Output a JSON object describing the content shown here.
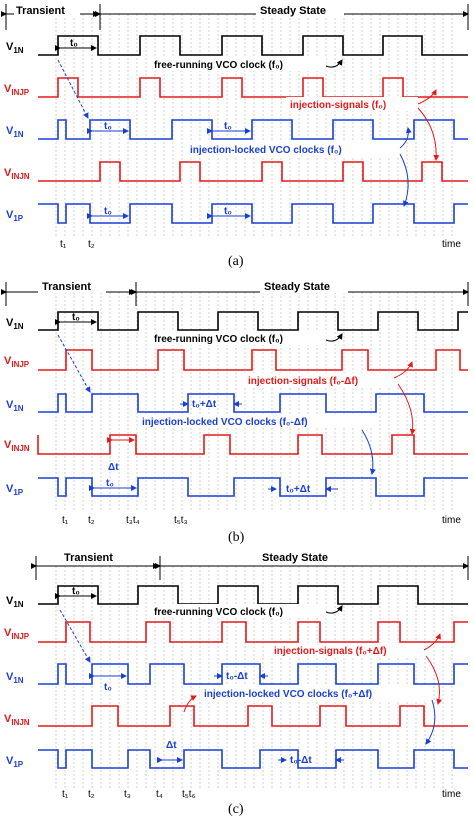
{
  "panels": [
    {
      "caption": "(a)",
      "header": {
        "left": "Transient",
        "right": "Steady State"
      },
      "signals": [
        {
          "label": "V",
          "sub": "1N",
          "color": "#000000"
        },
        {
          "label": "V",
          "sub": "INJP",
          "color": "#e41a1a"
        },
        {
          "label": "V",
          "sub": "1N",
          "color": "#1a3fd6"
        },
        {
          "label": "V",
          "sub": "INJN",
          "color": "#e41a1a"
        },
        {
          "label": "V",
          "sub": "1P",
          "color": "#1a3fd6"
        }
      ],
      "annotations": {
        "free_running": "free-running VCO clock (f₀)",
        "injection_signals": "injection-signals (f₀)",
        "locked": "injection-locked VCO clocks (f₀)",
        "period": "t₀"
      },
      "x_ticks": [
        "t₁",
        "t₂"
      ],
      "x_axis_label": "time"
    },
    {
      "caption": "(b)",
      "header": {
        "left": "Transient",
        "right": "Steady State"
      },
      "signals": [
        {
          "label": "V",
          "sub": "1N",
          "color": "#000000"
        },
        {
          "label": "V",
          "sub": "INJP",
          "color": "#e41a1a"
        },
        {
          "label": "V",
          "sub": "1N",
          "color": "#1a3fd6"
        },
        {
          "label": "V",
          "sub": "INJN",
          "color": "#e41a1a"
        },
        {
          "label": "V",
          "sub": "1P",
          "color": "#1a3fd6"
        }
      ],
      "annotations": {
        "free_running": "free-running VCO clock (f₀)",
        "injection_signals": "injection-signals (f₀-Δf)",
        "locked": "injection-locked VCO clocks (f₀-Δf)",
        "period": "t₀",
        "period_shift": "t₀+Δt",
        "delta": "Δt"
      },
      "x_ticks": [
        "t₁",
        "t₂",
        "t₃t₄",
        "t₅t₃"
      ],
      "x_axis_label": "time"
    },
    {
      "caption": "(c)",
      "header": {
        "left": "Transient",
        "right": "Steady State"
      },
      "signals": [
        {
          "label": "V",
          "sub": "1N",
          "color": "#000000"
        },
        {
          "label": "V",
          "sub": "INJP",
          "color": "#e41a1a"
        },
        {
          "label": "V",
          "sub": "1N",
          "color": "#1a3fd6"
        },
        {
          "label": "V",
          "sub": "INJN",
          "color": "#e41a1a"
        },
        {
          "label": "V",
          "sub": "1P",
          "color": "#1a3fd6"
        }
      ],
      "annotations": {
        "free_running": "free-running VCO clock (f₀)",
        "injection_signals": "injection-signals (f₀+Δf)",
        "locked": "injection-locked VCO clocks (f₀+Δf)",
        "period": "t₀",
        "period_shift": "t₀-Δt",
        "delta": "Δt"
      },
      "x_ticks": [
        "t₁",
        "t₂",
        "t₃",
        "t₄",
        "t₅t₆"
      ],
      "x_axis_label": "time"
    }
  ]
}
